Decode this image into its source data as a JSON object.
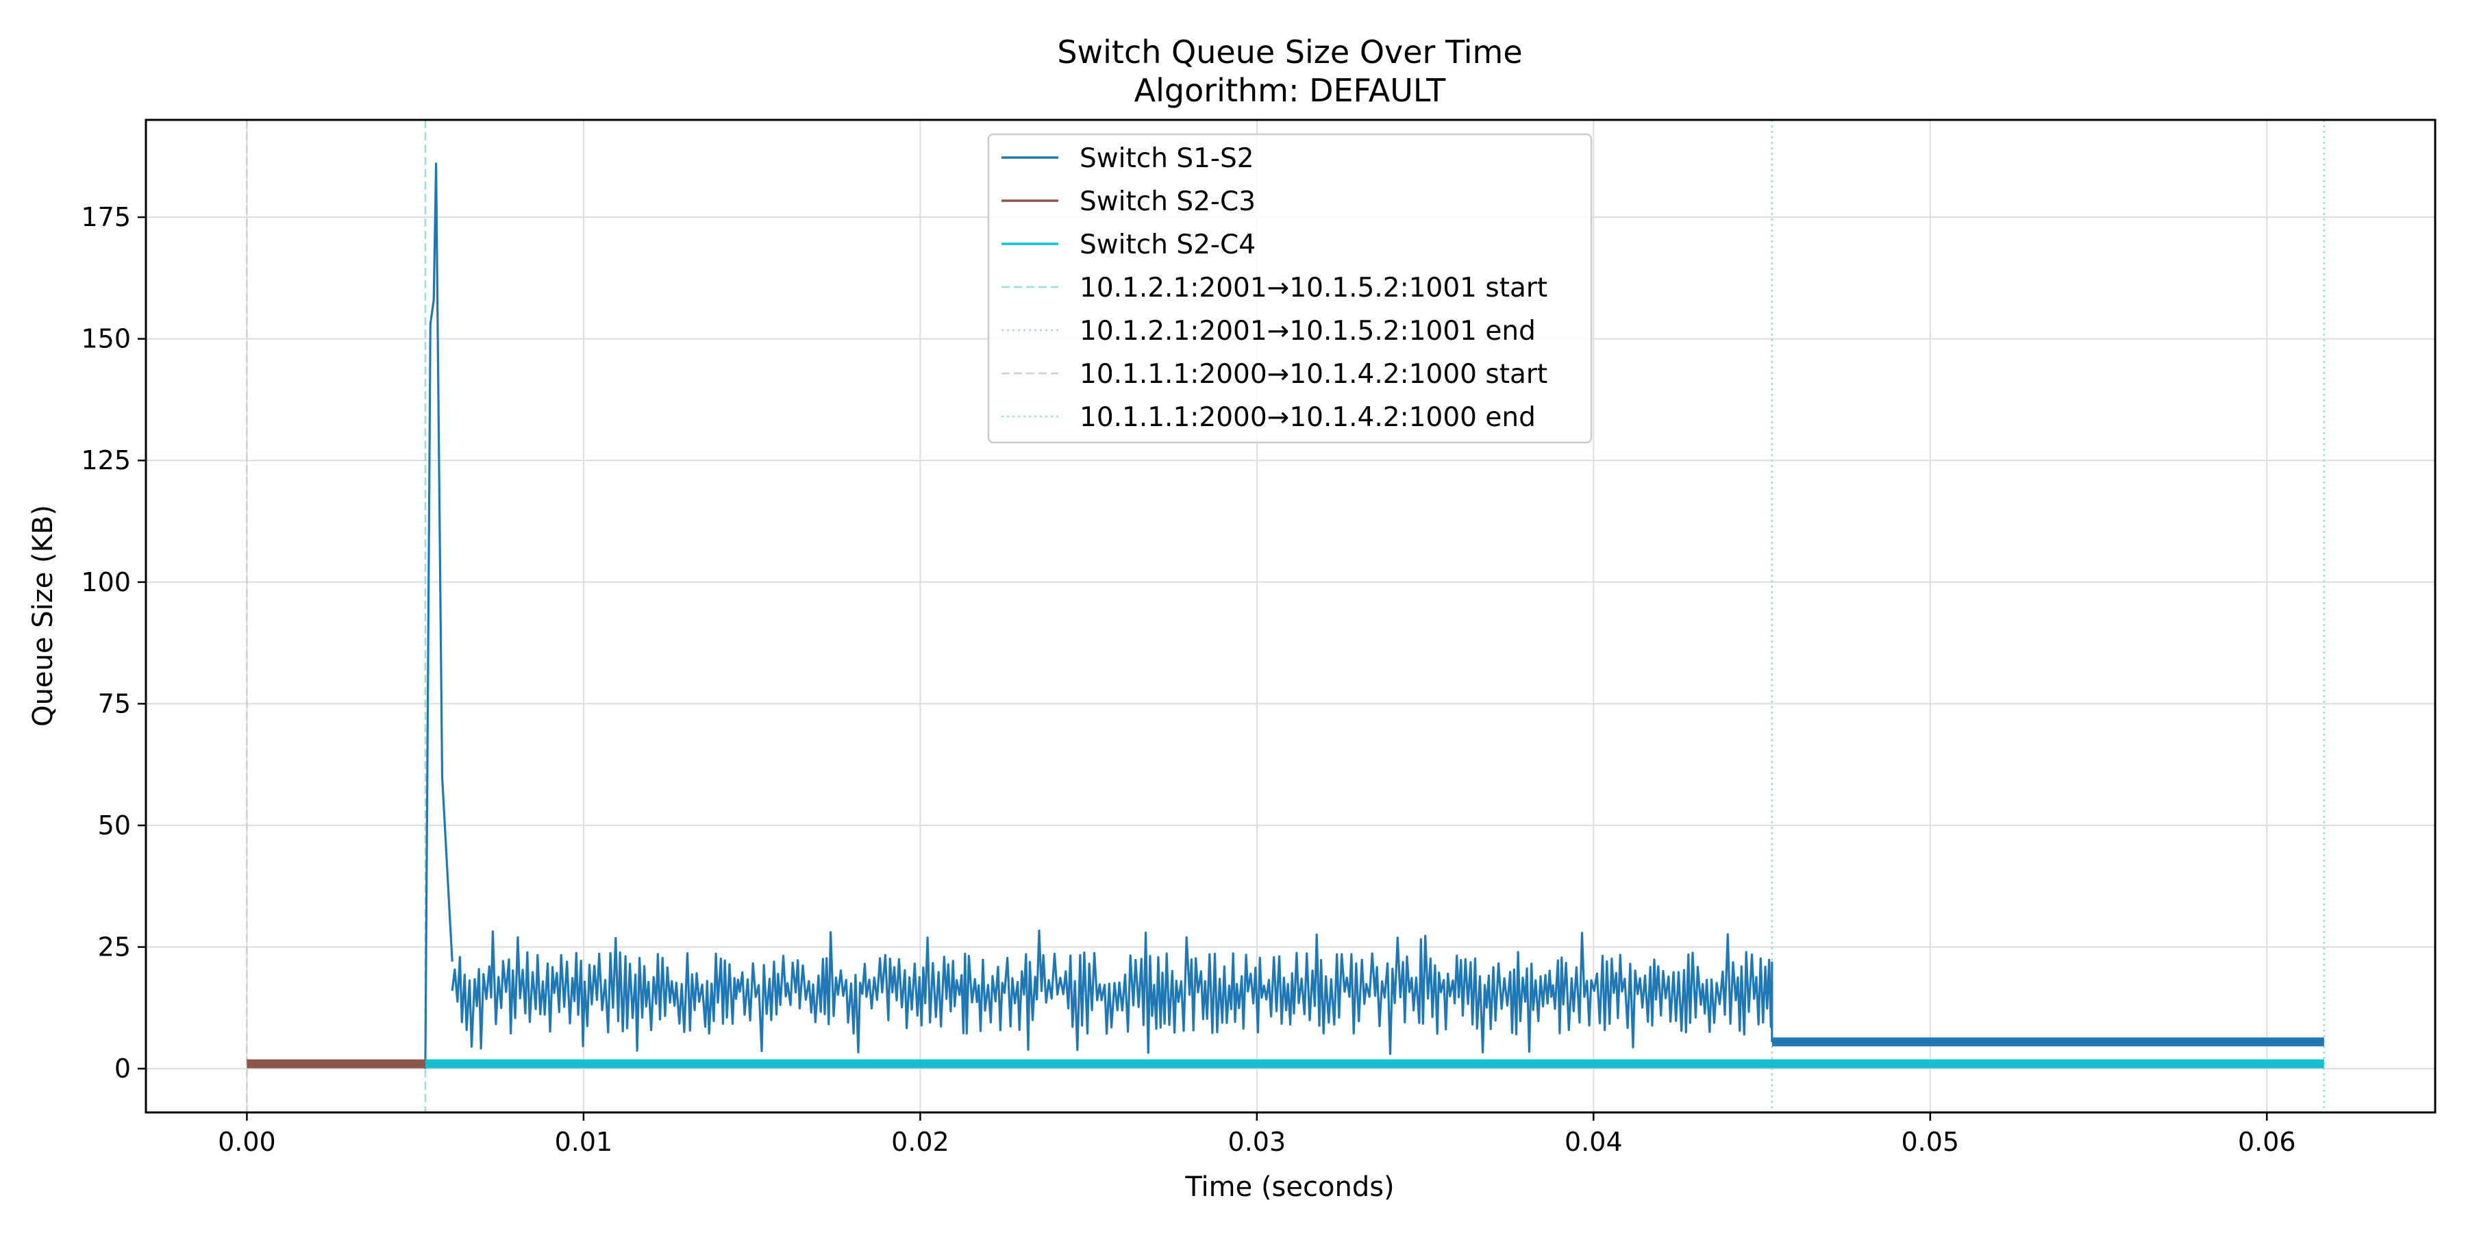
{
  "chart_data": {
    "type": "line",
    "title": "Switch Queue Size Over Time",
    "subtitle": "Algorithm: DEFAULT",
    "xlabel": "Time (seconds)",
    "ylabel": "Queue Size (KB)",
    "xlim": [
      -0.003,
      0.065
    ],
    "ylim": [
      -9,
      195
    ],
    "grid": true,
    "legend_position": "top-center",
    "x_ticks": [
      {
        "value": 0.0,
        "label": "0.00"
      },
      {
        "value": 0.01,
        "label": "0.01"
      },
      {
        "value": 0.02,
        "label": "0.02"
      },
      {
        "value": 0.03,
        "label": "0.03"
      },
      {
        "value": 0.04,
        "label": "0.04"
      },
      {
        "value": 0.05,
        "label": "0.05"
      },
      {
        "value": 0.06,
        "label": "0.06"
      }
    ],
    "y_ticks": [
      {
        "value": 0,
        "label": "0"
      },
      {
        "value": 25,
        "label": "25"
      },
      {
        "value": 50,
        "label": "50"
      },
      {
        "value": 75,
        "label": "75"
      },
      {
        "value": 100,
        "label": "100"
      },
      {
        "value": 125,
        "label": "125"
      },
      {
        "value": 150,
        "label": "150"
      },
      {
        "value": 175,
        "label": "175"
      }
    ],
    "series": [
      {
        "name": "Switch S1-S2",
        "color": "#1f77b4",
        "segments": [
          {
            "kind": "line",
            "points": [
              [
                0.0053,
                0
              ],
              [
                0.00545,
                153
              ],
              [
                0.00555,
                158
              ],
              [
                0.00562,
                186
              ],
              [
                0.0058,
                60
              ],
              [
                0.0061,
                22
              ]
            ]
          },
          {
            "kind": "oscillation",
            "x_start": 0.0061,
            "x_end": 0.0453,
            "low": 7,
            "high": 25,
            "min": 3,
            "max": 28.5
          },
          {
            "kind": "line",
            "points": [
              [
                0.0453,
                22
              ],
              [
                0.0453,
                5.5
              ]
            ]
          },
          {
            "kind": "line",
            "width": "thick",
            "points": [
              [
                0.0453,
                5.5
              ],
              [
                0.0617,
                5.5
              ]
            ]
          }
        ]
      },
      {
        "name": "Switch S2-C3",
        "color": "#8c564b",
        "segments": [
          {
            "kind": "line",
            "width": "thick",
            "points": [
              [
                0.0,
                1
              ],
              [
                0.0053,
                1
              ]
            ]
          }
        ]
      },
      {
        "name": "Switch S2-C4",
        "color": "#17becf",
        "segments": [
          {
            "kind": "line",
            "width": "thick",
            "points": [
              [
                0.0053,
                1
              ],
              [
                0.0617,
                1
              ]
            ]
          }
        ]
      }
    ],
    "vlines": [
      {
        "name": "10.1.2.1:2001→10.1.5.2:1001 start",
        "x": 0.0053,
        "color": "#9fd8dc",
        "style": "dashed"
      },
      {
        "name": "10.1.2.1:2001→10.1.5.2:1001 end",
        "x": 0.0453,
        "color": "#9fd8dc",
        "style": "dotted"
      },
      {
        "name": "10.1.1.1:2000→10.1.4.2:1000 start",
        "x": 0.0,
        "color": "#c7cfd3",
        "style": "dashed"
      },
      {
        "name": "10.1.1.1:2000→10.1.4.2:1000 end",
        "x": 0.0617,
        "color": "#9fd8dc",
        "style": "dotted"
      }
    ]
  }
}
